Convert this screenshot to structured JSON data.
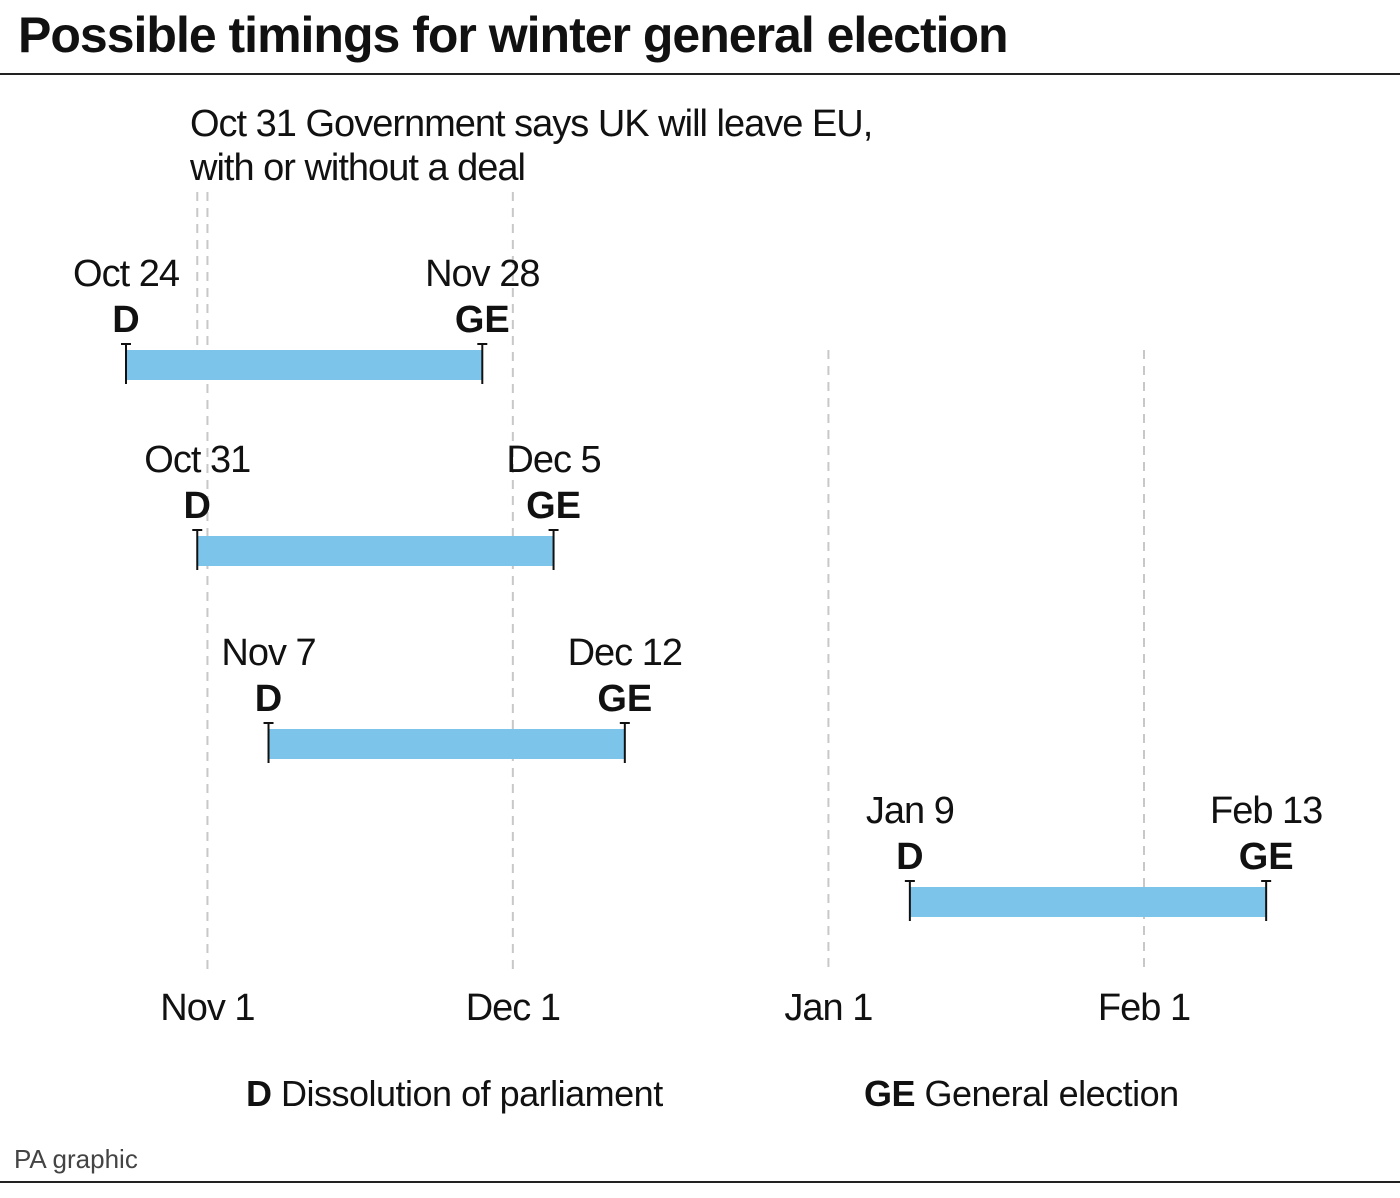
{
  "title": "Possible timings for winter general election",
  "credit": "PA graphic",
  "annotation": {
    "date_label": "Oct 31",
    "lines": [
      "Government says UK will leave EU,",
      "with or without a deal"
    ]
  },
  "chart_data": {
    "type": "timeline",
    "x_axis": {
      "type": "date",
      "range": [
        "2019-10-24",
        "2020-02-13"
      ],
      "ticks": [
        {
          "date": "2019-11-01",
          "label": "Nov 1"
        },
        {
          "date": "2019-12-01",
          "label": "Dec 1"
        },
        {
          "date": "2020-01-01",
          "label": "Jan 1"
        },
        {
          "date": "2020-02-01",
          "label": "Feb 1"
        }
      ],
      "grid": true
    },
    "reference_line": {
      "date": "2019-10-31"
    },
    "bars": [
      {
        "start": "2019-10-24",
        "start_label": "Oct 24",
        "start_code": "D",
        "end": "2019-11-28",
        "end_label": "Nov 28",
        "end_code": "GE"
      },
      {
        "start": "2019-10-31",
        "start_label": "Oct 31",
        "start_code": "D",
        "end": "2019-12-05",
        "end_label": "Dec 5",
        "end_code": "GE"
      },
      {
        "start": "2019-11-07",
        "start_label": "Nov 7",
        "start_code": "D",
        "end": "2019-12-12",
        "end_label": "Dec 12",
        "end_code": "GE"
      },
      {
        "start": "2020-01-09",
        "start_label": "Jan 9",
        "start_code": "D",
        "end": "2020-02-13",
        "end_label": "Feb 13",
        "end_code": "GE"
      }
    ],
    "legend": [
      {
        "code": "D",
        "text": "Dissolution of parliament"
      },
      {
        "code": "GE",
        "text": "General election"
      }
    ],
    "colors": {
      "bar": "#7cc4ea",
      "grid": "#c8c8c8",
      "text": "#111111"
    }
  }
}
